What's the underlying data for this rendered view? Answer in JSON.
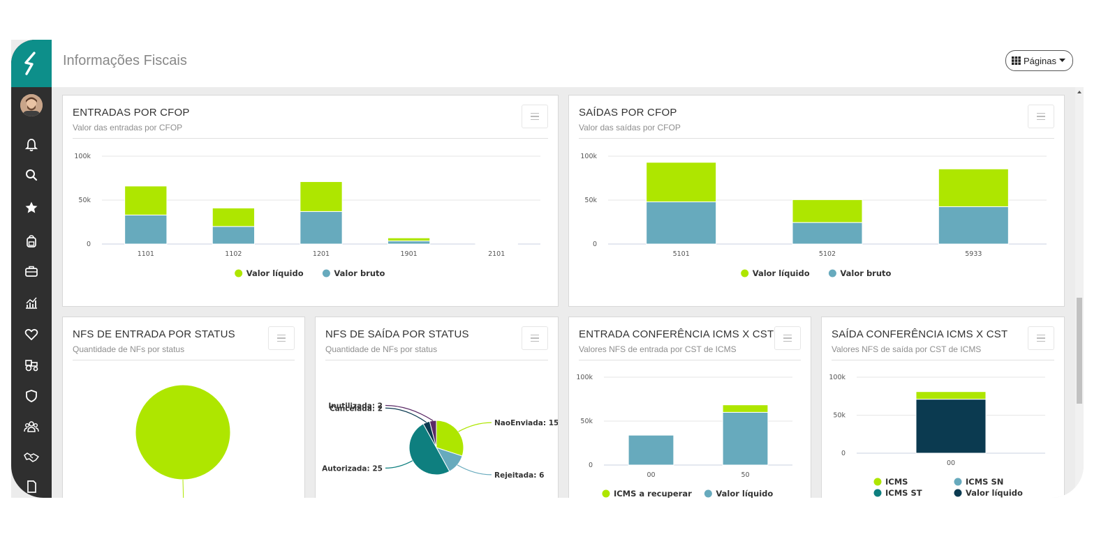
{
  "header": {
    "title": "Informações Fiscais",
    "pages_label": "Páginas"
  },
  "sidebar": {
    "items": [
      "user-avatar",
      "bell-icon",
      "search-icon",
      "star-icon",
      "backpack-icon",
      "briefcase-icon",
      "chart-growth-icon",
      "heart-icon",
      "tractor-icon",
      "shield-icon",
      "people-icon",
      "handshake-icon"
    ]
  },
  "colors": {
    "lime": "#aee600",
    "teal_light": "#67aabd",
    "teal_dark": "#0e7f7f",
    "navy": "#0b3a50",
    "purple": "#5b2a66",
    "brand": "#0d8f8a"
  },
  "panels": {
    "entradas": {
      "title": "ENTRADAS POR CFOP",
      "subtitle": "Valor das entradas por CFOP"
    },
    "saidas": {
      "title": "SAÍDAS POR CFOP",
      "subtitle": "Valor das saídas por CFOP"
    },
    "nfs_entrada": {
      "title": "NFS DE ENTRADA POR STATUS",
      "subtitle": "Quantidade de NFs por status"
    },
    "nfs_saida": {
      "title": "NFS DE SAÍDA POR STATUS",
      "subtitle": "Quantidade de NFs por status"
    },
    "entrada_icms": {
      "title": "ENTRADA CONFERÊNCIA ICMS X CST",
      "subtitle": "Valores NFS de entrada por CST de ICMS"
    },
    "saida_icms": {
      "title": "SAÍDA CONFERÊNCIA ICMS X CST",
      "subtitle": "Valores NFS de saída por CST de ICMS"
    }
  },
  "chart_data": [
    {
      "id": "entradas",
      "type": "bar",
      "stacked": true,
      "categories": [
        "1101",
        "1102",
        "1201",
        "1901",
        "2101"
      ],
      "yticks": [
        "0",
        "50k",
        "100k"
      ],
      "ylim": [
        0,
        100000
      ],
      "series": [
        {
          "name": "Valor bruto",
          "color": "#67aabd",
          "values": [
            33000,
            20000,
            37000,
            3500,
            500
          ]
        },
        {
          "name": "Valor líquido",
          "color": "#aee600",
          "values": [
            33000,
            21000,
            34000,
            3500,
            500
          ]
        }
      ],
      "legend": [
        "Valor líquido",
        "Valor bruto"
      ]
    },
    {
      "id": "saidas",
      "type": "bar",
      "stacked": true,
      "categories": [
        "5101",
        "5102",
        "5933"
      ],
      "yticks": [
        "0",
        "50k",
        "100k"
      ],
      "ylim": [
        0,
        100000
      ],
      "series": [
        {
          "name": "Valor bruto",
          "color": "#67aabd",
          "values": [
            48000,
            24500,
            42500
          ]
        },
        {
          "name": "Valor líquido",
          "color": "#aee600",
          "values": [
            45000,
            26000,
            43000
          ]
        }
      ],
      "legend": [
        "Valor líquido",
        "Valor bruto"
      ]
    },
    {
      "id": "nfs_entrada",
      "type": "pie",
      "slices": [
        {
          "name": "",
          "value": 1,
          "color": "#aee600"
        }
      ]
    },
    {
      "id": "nfs_saida",
      "type": "pie",
      "slices": [
        {
          "name": "NaoEnviada: 15",
          "value": 15,
          "color": "#aee600"
        },
        {
          "name": "Rejeitada: 6",
          "value": 6,
          "color": "#67aabd"
        },
        {
          "name": "Autorizada: 25",
          "value": 25,
          "color": "#0e7f7f"
        },
        {
          "name": "Cancelada: 2",
          "value": 2,
          "color": "#0b3a50"
        },
        {
          "name": "Inutilizada: 2",
          "value": 2,
          "color": "#5b2a66"
        }
      ]
    },
    {
      "id": "entrada_icms",
      "type": "bar",
      "stacked": true,
      "categories": [
        "00",
        "50"
      ],
      "yticks": [
        "0",
        "50k",
        "100k"
      ],
      "ylim": [
        0,
        100000
      ],
      "series": [
        {
          "name": "Valor líquido",
          "color": "#67aabd",
          "values": [
            34000,
            60000
          ]
        },
        {
          "name": "ICMS a recuperar",
          "color": "#aee600",
          "values": [
            0,
            8500
          ]
        }
      ],
      "legend": [
        "ICMS a recuperar",
        "Valor líquido"
      ]
    },
    {
      "id": "saida_icms",
      "type": "bar",
      "stacked": true,
      "categories": [
        "00"
      ],
      "yticks": [
        "0",
        "50k",
        "100k"
      ],
      "ylim": [
        0,
        100000
      ],
      "series": [
        {
          "name": "Valor líquido",
          "color": "#0b3a50",
          "values": [
            71000
          ]
        },
        {
          "name": "ICMS",
          "color": "#aee600",
          "values": [
            10000
          ]
        }
      ],
      "legend": [
        "ICMS",
        "ICMS SN",
        "ICMS ST",
        "Valor líquido"
      ],
      "legend_colors": [
        "#aee600",
        "#67aabd",
        "#0e7f7f",
        "#0b3a50"
      ]
    }
  ]
}
